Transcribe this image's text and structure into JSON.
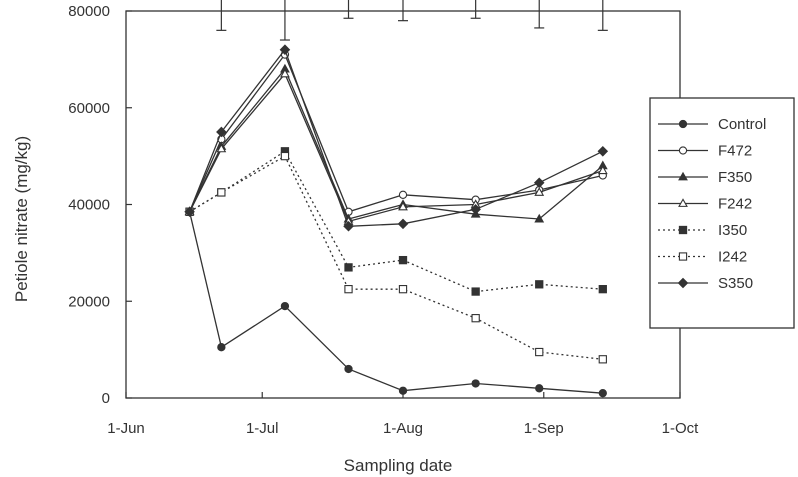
{
  "chart_data": {
    "type": "line",
    "xlabel": "Sampling date",
    "ylabel": "Petiole nitrate (mg/kg)",
    "xlim": [
      "2000-06-01",
      "2000-10-01"
    ],
    "ylim": [
      0,
      80000
    ],
    "x_ticks": [
      "1-Jun",
      "1-Jul",
      "1-Aug",
      "1-Sep",
      "1-Oct"
    ],
    "y_ticks": [
      "0",
      "20000",
      "40000",
      "60000",
      "80000"
    ],
    "grid": false,
    "legend_position": "right",
    "x": [
      "2000-06-15",
      "2000-06-22",
      "2000-07-06",
      "2000-07-20",
      "2000-08-01",
      "2000-08-17",
      "2000-08-31",
      "2000-09-14"
    ],
    "series": [
      {
        "name": "Control",
        "marker": "filled-circle",
        "line": "solid",
        "values": [
          38500,
          10500,
          19000,
          6000,
          1500,
          3000,
          2000,
          1000
        ]
      },
      {
        "name": "F472",
        "marker": "open-circle",
        "line": "solid",
        "values": [
          38500,
          53500,
          71000,
          38500,
          42000,
          41000,
          43000,
          46000
        ]
      },
      {
        "name": "F350",
        "marker": "filled-triangle",
        "line": "solid",
        "values": [
          38500,
          52000,
          68000,
          37000,
          40000,
          38000,
          37000,
          48000
        ]
      },
      {
        "name": "F242",
        "marker": "open-triangle",
        "line": "solid",
        "values": [
          38500,
          51500,
          67000,
          36500,
          39500,
          40000,
          42500,
          47000
        ]
      },
      {
        "name": "I350",
        "marker": "filled-square",
        "line": "dotted",
        "values": [
          38500,
          42500,
          51000,
          27000,
          28500,
          22000,
          23500,
          22500
        ]
      },
      {
        "name": "I242",
        "marker": "open-square",
        "line": "dotted",
        "values": [
          38500,
          42500,
          50000,
          22500,
          22500,
          16500,
          9500,
          8000
        ]
      },
      {
        "name": "S350",
        "marker": "filled-diamond",
        "line": "solid",
        "values": [
          38500,
          55000,
          72000,
          35500,
          36000,
          39000,
          44500,
          51000
        ]
      }
    ],
    "error_bars": [
      {
        "x": "2000-06-22",
        "low": 76000,
        "high": 83000
      },
      {
        "x": "2000-07-06",
        "low": 74000,
        "high": 86000
      },
      {
        "x": "2000-07-20",
        "low": 78500,
        "high": 82500
      },
      {
        "x": "2000-08-01",
        "low": 78000,
        "high": 82500
      },
      {
        "x": "2000-08-17",
        "low": 78500,
        "high": 82500
      },
      {
        "x": "2000-08-31",
        "low": 76500,
        "high": 84000
      },
      {
        "x": "2000-09-14",
        "low": 76000,
        "high": 85000
      }
    ]
  }
}
